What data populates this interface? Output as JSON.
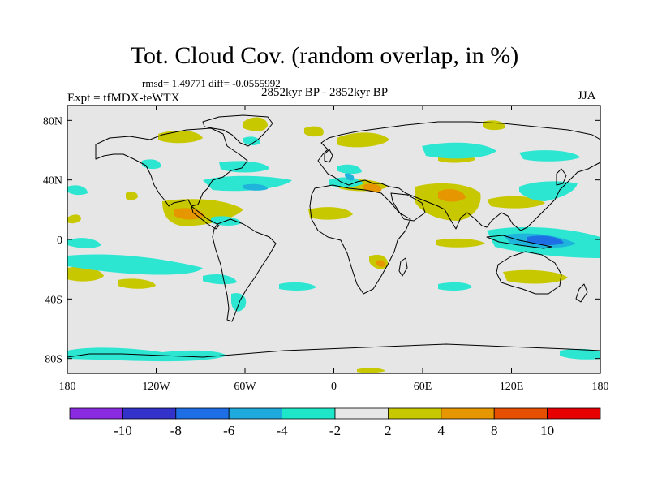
{
  "title": "Tot. Cloud Cov. (random overlap, in %)",
  "stats_line": "rmsd= 1.49771 diff= -0.0555992",
  "period": "2852kyr BP - 2852kyr BP",
  "experiment": "Expt = tfMDX-teWTX",
  "season": "JJA",
  "map": {
    "background_color": "#e6e6e6",
    "lon_ticks": [
      "180",
      "120W",
      "60W",
      "0",
      "60E",
      "120E",
      "180"
    ],
    "lat_ticks": [
      "80N",
      "40N",
      "0",
      "40S",
      "80S"
    ],
    "lon_values": [
      -180,
      -120,
      -60,
      0,
      60,
      120,
      180
    ],
    "lat_values": [
      80,
      40,
      0,
      -40,
      -80
    ],
    "lon_range": [
      -180,
      180
    ],
    "lat_range": [
      -90,
      90
    ]
  },
  "colorbar": {
    "labels": [
      "-10",
      "-8",
      "-6",
      "-4",
      "-2",
      "2",
      "4",
      "8",
      "10"
    ],
    "colors": [
      "#8a2be2",
      "#3333cc",
      "#1e6ee6",
      "#1eaadc",
      "#1ee6c8",
      "#e6e6e6",
      "#c8c800",
      "#e69600",
      "#e65000",
      "#e60000"
    ]
  },
  "anomaly_palette": {
    "cyan": "#2de6d2",
    "teal": "#1eb4dc",
    "blue": "#1e6ee6",
    "yellow": "#c8c800",
    "orange": "#e69600",
    "red_orange": "#e65000"
  }
}
